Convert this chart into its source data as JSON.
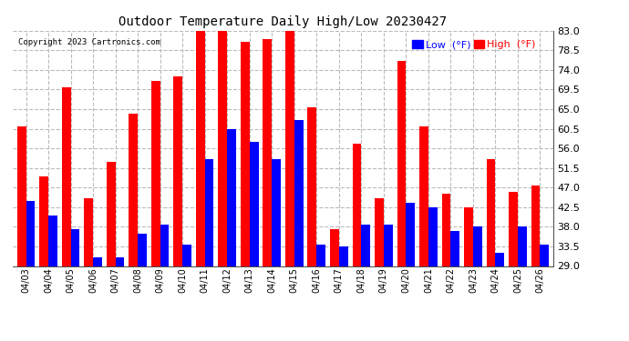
{
  "title": "Outdoor Temperature Daily High/Low 20230427",
  "copyright": "Copyright 2023 Cartronics.com",
  "legend_low_label": "Low  (°F)",
  "legend_high_label": "High  (°F)",
  "low_color": "#0000ff",
  "high_color": "#ff0000",
  "background_color": "#ffffff",
  "grid_color": "#bbbbbb",
  "ylim": [
    29.0,
    83.0
  ],
  "yticks": [
    29.0,
    33.5,
    38.0,
    42.5,
    47.0,
    51.5,
    56.0,
    60.5,
    65.0,
    69.5,
    74.0,
    78.5,
    83.0
  ],
  "dates": [
    "04/03",
    "04/04",
    "04/05",
    "04/06",
    "04/07",
    "04/08",
    "04/09",
    "04/10",
    "04/11",
    "04/12",
    "04/13",
    "04/14",
    "04/15",
    "04/16",
    "04/17",
    "04/18",
    "04/19",
    "04/20",
    "04/21",
    "04/22",
    "04/23",
    "04/24",
    "04/25",
    "04/26"
  ],
  "highs": [
    61.0,
    49.5,
    70.0,
    44.5,
    53.0,
    64.0,
    71.5,
    72.5,
    83.0,
    83.0,
    80.5,
    81.0,
    83.0,
    65.5,
    37.5,
    57.0,
    44.5,
    76.0,
    61.0,
    45.5,
    42.5,
    53.5,
    46.0,
    47.5
  ],
  "lows": [
    44.0,
    40.5,
    37.5,
    31.0,
    31.0,
    36.5,
    38.5,
    34.0,
    53.5,
    60.5,
    57.5,
    53.5,
    62.5,
    34.0,
    33.5,
    38.5,
    38.5,
    43.5,
    42.5,
    37.0,
    38.0,
    32.0,
    38.0,
    34.0
  ]
}
